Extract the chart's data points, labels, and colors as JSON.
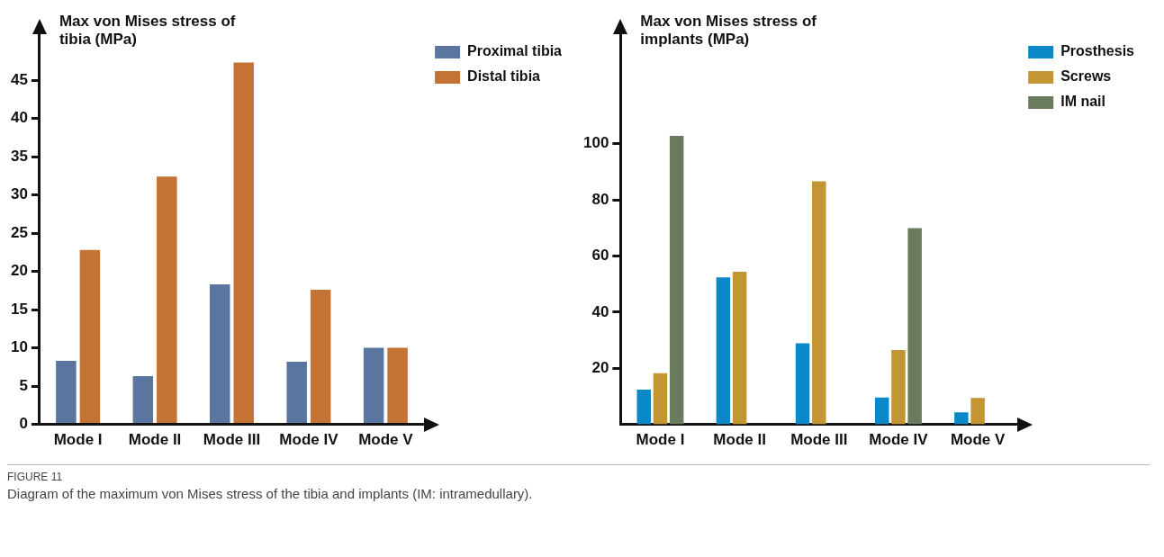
{
  "chart_data": [
    {
      "type": "bar",
      "ylabel": "Max von Mises stress of tibia (MPa)",
      "categories": [
        "Mode I",
        "Mode II",
        "Mode III",
        "Mode IV",
        "Mode V"
      ],
      "series": [
        {
          "name": "Proximal tibia",
          "color": "#5a75a0",
          "values": [
            8.3,
            6.3,
            18.3,
            8.2,
            10.0
          ]
        },
        {
          "name": "Distal tibia",
          "color": "#c47335",
          "values": [
            22.8,
            32.4,
            47.3,
            17.6,
            10.0
          ]
        }
      ],
      "ylim": [
        0,
        51
      ],
      "yticks": [
        0,
        5,
        10,
        15,
        20,
        25,
        30,
        35,
        40,
        45
      ],
      "grid": false,
      "legend": "top right"
    },
    {
      "type": "bar",
      "ylabel": "Max von Mises stress of implants (MPa)",
      "categories": [
        "Mode I",
        "Mode II",
        "Mode III",
        "Mode IV",
        "Mode V"
      ],
      "series": [
        {
          "name": "Prosthesis",
          "color": "#0a88c8",
          "values": [
            12.4,
            52.4,
            28.9,
            9.6,
            4.3
          ]
        },
        {
          "name": "Screws",
          "color": "#c39533",
          "values": [
            18.2,
            54.4,
            86.6,
            26.5,
            9.4
          ]
        },
        {
          "name": "IM nail",
          "color": "#6a7a5c",
          "values": [
            102.8,
            null,
            null,
            69.9,
            null
          ]
        }
      ],
      "ylim": [
        0,
        139
      ],
      "yticks": [
        20,
        40,
        60,
        80,
        100
      ],
      "grid": false,
      "legend": "top right",
      "annotations": [
        "FIGURE 11",
        "Diagram of the maximum von Mises stress of the tibia and implants (IM: intramedullary)."
      ]
    }
  ]
}
